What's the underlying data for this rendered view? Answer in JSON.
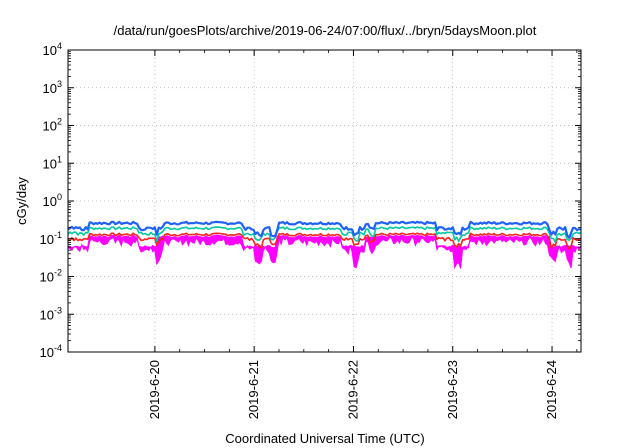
{
  "chart_data": {
    "type": "line",
    "title": "/data/run/goesPlots/archive/2019-06-24/07:00/flux/../bryn/5daysMoon.plot",
    "xlabel": "Coordinated Universal Time (UTC)",
    "ylabel": "cGy/day",
    "yscale": "log",
    "ylim": [
      0.0001,
      10000
    ],
    "y_ticks": [
      {
        "base": "10",
        "exp": "-4"
      },
      {
        "base": "10",
        "exp": "-3"
      },
      {
        "base": "10",
        "exp": "-2"
      },
      {
        "base": "10",
        "exp": "-1"
      },
      {
        "base": "10",
        "exp": "0"
      },
      {
        "base": "10",
        "exp": "1"
      },
      {
        "base": "10",
        "exp": "2"
      },
      {
        "base": "10",
        "exp": "3"
      },
      {
        "base": "10",
        "exp": "4"
      }
    ],
    "xlim": [
      "2019-06-19 03:00",
      "2019-06-24 07:00"
    ],
    "x_ticks": [
      "2019-6-20",
      "2019-6-21",
      "2019-6-22",
      "2019-6-23",
      "2019-6-24"
    ],
    "grid": true,
    "series": [
      {
        "color": "#ff00ff",
        "x_range_days": [
          0,
          5.1667
        ],
        "base_value": 0.085,
        "quiet_factor": 0.65
      },
      {
        "color": "#ff2020",
        "x_range_days": [
          0,
          5.1667
        ],
        "base_value": 0.13,
        "quiet_factor": 0.75
      },
      {
        "color": "#00c8a0",
        "x_range_days": [
          0,
          5.1667
        ],
        "base_value": 0.19,
        "quiet_factor": 0.72
      },
      {
        "color": "#2060ff",
        "x_range_days": [
          0,
          5.1667
        ],
        "base_value": 0.26,
        "quiet_factor": 0.72
      }
    ],
    "enhancement_periods_days": [
      [
        0.2,
        0.7
      ],
      [
        0.9,
        1.75
      ],
      [
        2.1,
        2.75
      ],
      [
        3.0,
        3.7
      ],
      [
        4.05,
        4.85
      ]
    ],
    "dip_times_days": [
      0.92,
      1.92,
      2.08,
      2.9,
      3.06,
      3.92,
      4.88,
      5.05
    ]
  }
}
